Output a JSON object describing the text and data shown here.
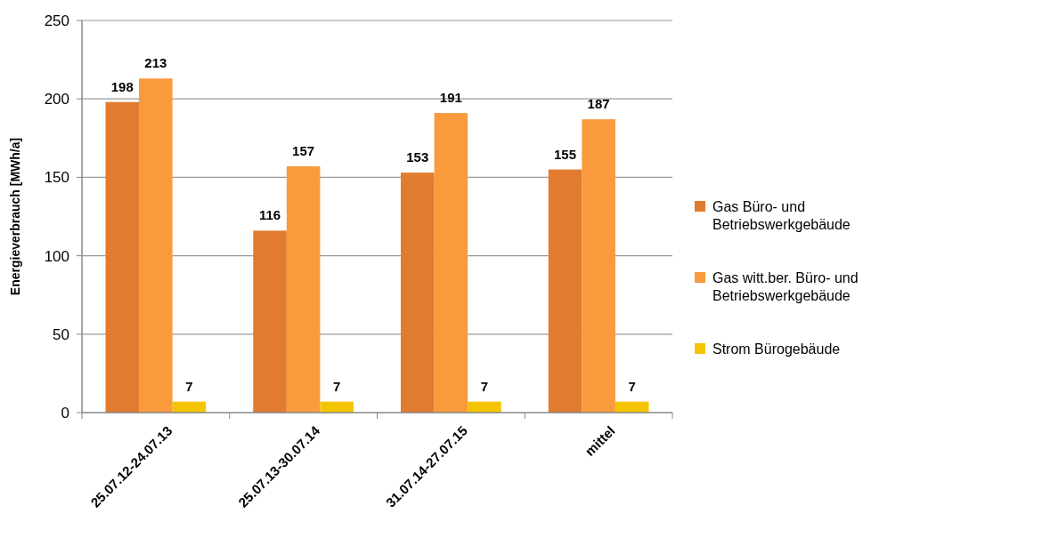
{
  "chart_data": {
    "type": "bar",
    "ylabel": "Energieverbrauch  [MWh/a]",
    "categories": [
      "25.07.12-24.07.13",
      "25.07.13-30.07.14",
      "31.07.14-27.07.15",
      "mittel"
    ],
    "series": [
      {
        "name": "Gas Büro- und Betriebswerkgebäude",
        "color": "#e07b30",
        "values": [
          198,
          116,
          153,
          155
        ]
      },
      {
        "name": "Gas witt.ber. Büro- und Betriebswerkgebäude",
        "color": "#f99a3c",
        "values": [
          213,
          157,
          191,
          187
        ]
      },
      {
        "name": "Strom Bürogebäude",
        "color": "#f5c400",
        "values": [
          7,
          7,
          7,
          7
        ]
      }
    ],
    "ylim": [
      0,
      250
    ],
    "yticks": [
      0,
      50,
      100,
      150,
      200,
      250
    ],
    "grid": "y",
    "legend": "right",
    "data_labels": true
  }
}
